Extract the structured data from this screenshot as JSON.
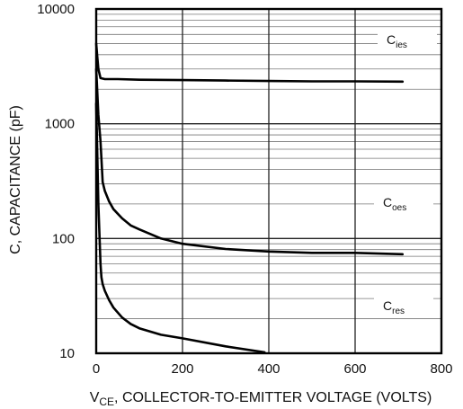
{
  "chart_data": {
    "type": "line",
    "title": "",
    "xlabel": "V_CE, COLLECTOR-TO-EMITTER VOLTAGE (VOLTS)",
    "xlabel_parts": {
      "main": "V",
      "sub": "CE",
      "rest": ", COLLECTOR-TO-EMITTER VOLTAGE (VOLTS)"
    },
    "ylabel": "C, CAPACITANCE (pF)",
    "xlim": [
      0,
      800
    ],
    "ylim": [
      10,
      10000
    ],
    "yscale": "log",
    "grid": true,
    "x_ticks": [
      0,
      200,
      400,
      600,
      800
    ],
    "x_tick_labels": [
      "0",
      "200",
      "400",
      "600",
      "800"
    ],
    "y_ticks": [
      10,
      100,
      1000,
      10000
    ],
    "y_tick_labels": [
      "10",
      "100",
      "1000",
      "10000"
    ],
    "series": [
      {
        "name": "Cies",
        "label_main": "C",
        "label_sub": "ies",
        "x": [
          0,
          2,
          5,
          10,
          20,
          50,
          100,
          200,
          300,
          400,
          500,
          600,
          710
        ],
        "y": [
          5000,
          4000,
          3000,
          2500,
          2450,
          2450,
          2420,
          2400,
          2380,
          2360,
          2340,
          2340,
          2330
        ]
      },
      {
        "name": "Coes",
        "label_main": "C",
        "label_sub": "oes",
        "x": [
          0,
          5,
          10,
          15,
          20,
          30,
          40,
          60,
          80,
          100,
          150,
          200,
          300,
          400,
          500,
          600,
          710
        ],
        "y": [
          3000,
          1200,
          700,
          310,
          260,
          210,
          180,
          150,
          130,
          120,
          100,
          90,
          81,
          77,
          75,
          75,
          73
        ]
      },
      {
        "name": "Cres",
        "label_main": "C",
        "label_sub": "res",
        "x": [
          0,
          5,
          10,
          12,
          15,
          20,
          30,
          40,
          60,
          80,
          100,
          150,
          200,
          300,
          390
        ],
        "y": [
          1500,
          200,
          60,
          46,
          40,
          35,
          29,
          25,
          20.5,
          18,
          16.5,
          14.5,
          13.5,
          11.5,
          10.2
        ]
      }
    ]
  }
}
